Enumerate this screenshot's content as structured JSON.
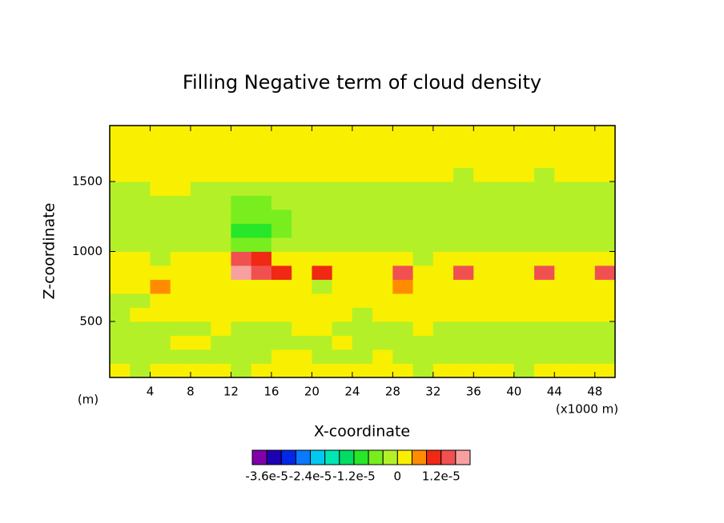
{
  "chart_data": {
    "type": "contour",
    "title": "Filling Negative term of cloud density",
    "x_label": "X-coordinate",
    "y_label": "Z-coordinate",
    "y_unit": "(m)",
    "x_unit": "(x1000 m)",
    "xlim": [
      0,
      50
    ],
    "ylim": [
      100,
      1900
    ],
    "xticks": [
      4,
      8,
      12,
      16,
      20,
      24,
      28,
      32,
      36,
      40,
      44,
      48
    ],
    "yticks": [
      500,
      1000,
      1500
    ],
    "x": [
      1,
      3,
      5,
      7,
      9,
      11,
      13,
      15,
      17,
      19,
      21,
      23,
      25,
      27,
      29,
      31,
      33,
      35,
      37,
      39,
      41,
      43,
      45,
      47,
      49
    ],
    "y": [
      150,
      250,
      350,
      450,
      550,
      650,
      750,
      850,
      950,
      1050,
      1150,
      1250,
      1350,
      1450,
      1550,
      1650,
      1750,
      1850
    ],
    "levels": [
      -3.6e-05,
      -3.2e-05,
      -2.8e-05,
      -2.4e-05,
      -2e-05,
      -1.6e-05,
      -1.2e-05,
      -8e-06,
      -4e-06,
      0,
      4e-06,
      8e-06,
      1.2e-05,
      1.6e-05
    ],
    "colors": [
      "#8200aa",
      "#1e00b4",
      "#0028e6",
      "#0a78ff",
      "#00c8f0",
      "#00e6b4",
      "#00dc64",
      "#28e628",
      "#78ee1e",
      "#b4f028",
      "#f8f000",
      "#ff8c00",
      "#f02814",
      "#f05050",
      "#f8a0a0"
    ],
    "colorbar_ticks": [
      {
        "value": -3.6e-05,
        "label": "-3.6e-5"
      },
      {
        "value": -2.4e-05,
        "label": "-2.4e-5"
      },
      {
        "value": -1.2e-05,
        "label": "-1.2e-5"
      },
      0,
      {
        "value": 1.2e-05,
        "label": "1.2e-5"
      }
    ],
    "z": [
      [
        2e-06,
        -2e-06,
        2e-06,
        2e-06,
        2e-06,
        2e-06,
        -2e-06,
        2e-06,
        2e-06,
        2e-06,
        2e-06,
        2e-06,
        2e-06,
        2e-06,
        2e-06,
        -2e-06,
        2e-06,
        2e-06,
        2e-06,
        2e-06,
        -2e-06,
        2e-06,
        2e-06,
        2e-06,
        2e-06
      ],
      [
        -2e-06,
        -2e-06,
        -2e-06,
        -2e-06,
        -2e-06,
        -2e-06,
        -2e-06,
        -2e-06,
        2e-06,
        2e-06,
        -2e-06,
        -2e-06,
        -2e-06,
        2e-06,
        -2e-06,
        -2e-06,
        -2e-06,
        -2e-06,
        -2e-06,
        -2e-06,
        -2e-06,
        -2e-06,
        -2e-06,
        -2e-06,
        -2e-06
      ],
      [
        -2e-06,
        -2e-06,
        -2e-06,
        2e-06,
        2e-06,
        -2e-06,
        -2e-06,
        -2e-06,
        -2e-06,
        -2e-06,
        -2e-06,
        2e-06,
        -2e-06,
        -2e-06,
        -2e-06,
        -2e-06,
        -2e-06,
        -2e-06,
        -2e-06,
        -2e-06,
        -2e-06,
        -2e-06,
        -2e-06,
        -2e-06,
        -2e-06
      ],
      [
        -2e-06,
        -2e-06,
        -2e-06,
        -2e-06,
        -2e-06,
        2e-06,
        -2e-06,
        -2e-06,
        -2e-06,
        2e-06,
        2e-06,
        -2e-06,
        -2e-06,
        -2e-06,
        -2e-06,
        2e-06,
        -2e-06,
        -2e-06,
        -2e-06,
        -2e-06,
        -2e-06,
        -2e-06,
        -2e-06,
        -2e-06,
        -2e-06
      ],
      [
        -2e-06,
        2e-06,
        2e-06,
        2e-06,
        2e-06,
        2e-06,
        2e-06,
        2e-06,
        2e-06,
        2e-06,
        2e-06,
        2e-06,
        -2e-06,
        2e-06,
        2e-06,
        2e-06,
        2e-06,
        2e-06,
        2e-06,
        2e-06,
        2e-06,
        2e-06,
        2e-06,
        2e-06,
        2e-06
      ],
      [
        -2e-06,
        -2e-06,
        2e-06,
        2e-06,
        2e-06,
        2e-06,
        2e-06,
        2e-06,
        2e-06,
        2e-06,
        2e-06,
        2e-06,
        2e-06,
        2e-06,
        2e-06,
        2e-06,
        2e-06,
        2e-06,
        2e-06,
        2e-06,
        2e-06,
        2e-06,
        2e-06,
        2e-06,
        2e-06
      ],
      [
        2e-06,
        2e-06,
        6e-06,
        2e-06,
        2e-06,
        2e-06,
        2e-06,
        2e-06,
        2e-06,
        2e-06,
        -2e-06,
        2e-06,
        2e-06,
        2e-06,
        6e-06,
        2e-06,
        2e-06,
        2e-06,
        2e-06,
        2e-06,
        2e-06,
        2e-06,
        2e-06,
        2e-06,
        2e-06
      ],
      [
        2e-06,
        2e-06,
        2e-06,
        2e-06,
        2e-06,
        2e-06,
        1.8e-05,
        1.4e-05,
        1e-05,
        2e-06,
        1e-05,
        2e-06,
        2e-06,
        2e-06,
        1.4e-05,
        2e-06,
        2e-06,
        1.4e-05,
        2e-06,
        2e-06,
        2e-06,
        1.4e-05,
        2e-06,
        2e-06,
        1.4e-05
      ],
      [
        2e-06,
        2e-06,
        -2e-06,
        2e-06,
        2e-06,
        2e-06,
        1.4e-05,
        1e-05,
        2e-06,
        2e-06,
        2e-06,
        2e-06,
        2e-06,
        2e-06,
        2e-06,
        -2e-06,
        2e-06,
        2e-06,
        2e-06,
        2e-06,
        2e-06,
        2e-06,
        2e-06,
        2e-06,
        2e-06
      ],
      [
        -2e-06,
        -2e-06,
        -2e-06,
        -2e-06,
        -2e-06,
        -2e-06,
        -6e-06,
        -6e-06,
        -2e-06,
        -2e-06,
        -2e-06,
        -2e-06,
        -2e-06,
        -2e-06,
        -2e-06,
        -2e-06,
        -2e-06,
        -2e-06,
        -2e-06,
        -2e-06,
        -2e-06,
        -2e-06,
        -2e-06,
        -2e-06,
        -2e-06
      ],
      [
        -2e-06,
        -2e-06,
        -2e-06,
        -2e-06,
        -2e-06,
        -2e-06,
        -1e-05,
        -1e-05,
        -6e-06,
        -2e-06,
        -2e-06,
        -2e-06,
        -2e-06,
        -2e-06,
        -2e-06,
        -2e-06,
        -2e-06,
        -2e-06,
        -2e-06,
        -2e-06,
        -2e-06,
        -2e-06,
        -2e-06,
        -2e-06,
        -2e-06
      ],
      [
        -2e-06,
        -2e-06,
        -2e-06,
        -2e-06,
        -2e-06,
        -2e-06,
        -6e-06,
        -6e-06,
        -6e-06,
        -2e-06,
        -2e-06,
        -2e-06,
        -2e-06,
        -2e-06,
        -2e-06,
        -2e-06,
        -2e-06,
        -2e-06,
        -2e-06,
        -2e-06,
        -2e-06,
        -2e-06,
        -2e-06,
        -2e-06,
        -2e-06
      ],
      [
        -2e-06,
        -2e-06,
        -2e-06,
        -2e-06,
        -2e-06,
        -2e-06,
        -6e-06,
        -6e-06,
        -2e-06,
        -2e-06,
        -2e-06,
        -2e-06,
        -2e-06,
        -2e-06,
        -2e-06,
        -2e-06,
        -2e-06,
        -2e-06,
        -2e-06,
        -2e-06,
        -2e-06,
        -2e-06,
        -2e-06,
        -2e-06,
        -2e-06
      ],
      [
        -2e-06,
        -2e-06,
        2e-06,
        2e-06,
        -2e-06,
        -2e-06,
        -2e-06,
        -2e-06,
        -2e-06,
        -2e-06,
        -2e-06,
        -2e-06,
        -2e-06,
        -2e-06,
        -2e-06,
        -2e-06,
        -2e-06,
        -2e-06,
        -2e-06,
        -2e-06,
        -2e-06,
        -2e-06,
        -2e-06,
        -2e-06,
        -2e-06
      ],
      [
        2e-06,
        2e-06,
        2e-06,
        2e-06,
        2e-06,
        2e-06,
        2e-06,
        2e-06,
        2e-06,
        2e-06,
        2e-06,
        2e-06,
        2e-06,
        2e-06,
        2e-06,
        2e-06,
        2e-06,
        -2e-06,
        2e-06,
        2e-06,
        2e-06,
        -2e-06,
        2e-06,
        2e-06,
        2e-06
      ],
      [
        2e-06,
        2e-06,
        2e-06,
        2e-06,
        2e-06,
        2e-06,
        2e-06,
        2e-06,
        2e-06,
        2e-06,
        2e-06,
        2e-06,
        2e-06,
        2e-06,
        2e-06,
        2e-06,
        2e-06,
        2e-06,
        2e-06,
        2e-06,
        2e-06,
        2e-06,
        2e-06,
        2e-06,
        2e-06
      ],
      [
        2e-06,
        2e-06,
        2e-06,
        2e-06,
        2e-06,
        2e-06,
        2e-06,
        2e-06,
        2e-06,
        2e-06,
        2e-06,
        2e-06,
        2e-06,
        2e-06,
        2e-06,
        2e-06,
        2e-06,
        2e-06,
        2e-06,
        2e-06,
        2e-06,
        2e-06,
        2e-06,
        2e-06,
        2e-06
      ],
      [
        2e-06,
        2e-06,
        2e-06,
        2e-06,
        2e-06,
        2e-06,
        2e-06,
        2e-06,
        2e-06,
        2e-06,
        2e-06,
        2e-06,
        2e-06,
        2e-06,
        2e-06,
        2e-06,
        2e-06,
        2e-06,
        2e-06,
        2e-06,
        2e-06,
        2e-06,
        2e-06,
        2e-06,
        2e-06
      ]
    ]
  }
}
